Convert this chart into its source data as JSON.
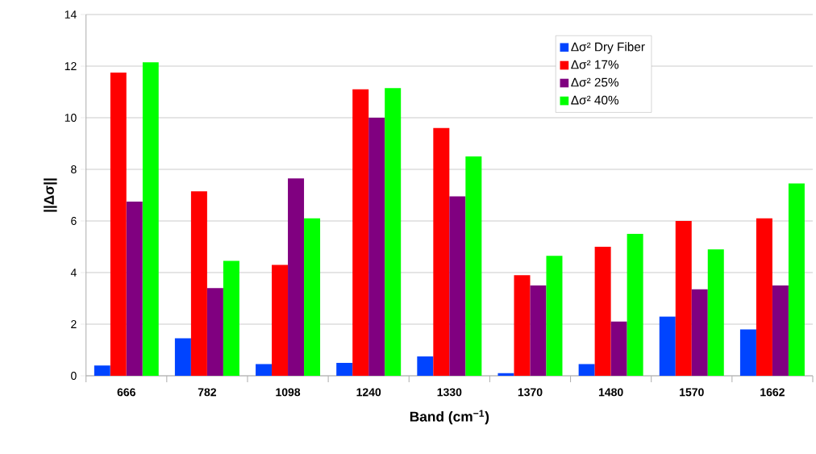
{
  "chart_data": {
    "type": "bar",
    "xlabel": "**Band (cm$^{−1}$)**",
    "ylabel": "**||Δσ||**",
    "categories": [
      "666",
      "782",
      "1098",
      "1240",
      "1330",
      "1370",
      "1480",
      "1570",
      "1662"
    ],
    "series": [
      {
        "name": "Δσ² Dry Fiber",
        "color": "#0044ff",
        "values": [
          0.4,
          1.45,
          0.45,
          0.5,
          0.75,
          0.1,
          0.45,
          2.3,
          1.8
        ]
      },
      {
        "name": "Δσ² 17%",
        "color": "#ff0000",
        "values": [
          11.75,
          7.15,
          4.3,
          11.1,
          9.6,
          3.9,
          5.0,
          6.0,
          6.1
        ]
      },
      {
        "name": "Δσ² 25%",
        "color": "#800080",
        "values": [
          6.75,
          3.4,
          7.65,
          10.0,
          6.95,
          3.5,
          2.1,
          3.35,
          3.5
        ]
      },
      {
        "name": "Δσ² 40%",
        "color": "#00ff00",
        "values": [
          12.15,
          4.45,
          6.1,
          11.15,
          8.5,
          4.65,
          5.5,
          4.9,
          7.45
        ]
      }
    ],
    "ylim": [
      0,
      14
    ],
    "yticks": [
      0,
      2,
      4,
      6,
      8,
      10,
      12,
      14
    ],
    "grid": "y",
    "legend": "top right"
  }
}
